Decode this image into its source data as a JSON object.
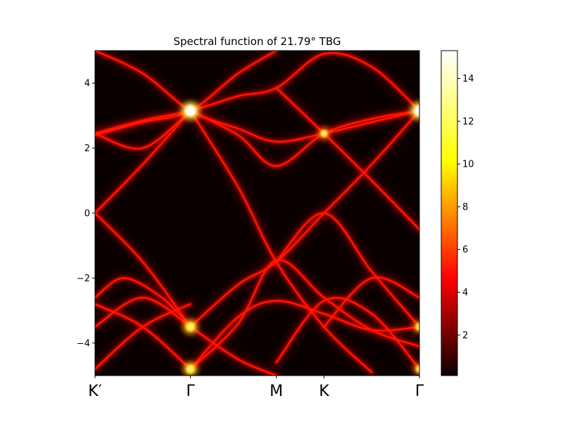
{
  "chart_data": {
    "type": "heatmap",
    "title": "Spectral function of 21.79° TBG",
    "colormap": "hot",
    "x_ticks": [
      "K′",
      "Γ",
      "M",
      "K",
      "Γ"
    ],
    "x_tick_positions": [
      0,
      1,
      1.9,
      2.4,
      3.4
    ],
    "xlim": [
      0,
      3.4
    ],
    "ylim": [
      -5,
      5
    ],
    "y_ticks": [
      -4,
      -2,
      0,
      2,
      4
    ],
    "y_tick_labels": [
      "−4",
      "−2",
      "0",
      "2",
      "4"
    ],
    "colorbar": {
      "vmin": 0.1,
      "vmax": 15.3,
      "ticks": [
        2,
        4,
        6,
        8,
        10,
        12,
        14
      ],
      "tick_labels": [
        "2",
        "4",
        "6",
        "8",
        "10",
        "12",
        "14"
      ]
    },
    "bands": [
      {
        "name": "b1",
        "points": [
          [
            0,
            5.0
          ],
          [
            0.5,
            4.3
          ],
          [
            1.0,
            3.15
          ],
          [
            1.5,
            2.6
          ],
          [
            1.9,
            2.2
          ],
          [
            2.4,
            2.45
          ],
          [
            2.9,
            2.8
          ],
          [
            3.4,
            3.15
          ]
        ]
      },
      {
        "name": "b2",
        "points": [
          [
            0,
            2.45
          ],
          [
            0.5,
            2.85
          ],
          [
            1.0,
            3.15
          ],
          [
            1.5,
            3.6
          ],
          [
            1.9,
            3.85
          ],
          [
            2.4,
            4.9
          ],
          [
            2.9,
            4.5
          ],
          [
            3.4,
            3.15
          ]
        ]
      },
      {
        "name": "b3",
        "points": [
          [
            0,
            2.4
          ],
          [
            0.5,
            2.8
          ],
          [
            1.0,
            3.15
          ],
          [
            1.5,
            4.3
          ],
          [
            1.9,
            5.0
          ]
        ]
      },
      {
        "name": "b4",
        "points": [
          [
            1.0,
            3.15
          ],
          [
            1.5,
            2.4
          ],
          [
            1.9,
            1.45
          ],
          [
            2.4,
            2.45
          ],
          [
            2.9,
            2.9
          ],
          [
            3.4,
            3.15
          ]
        ]
      },
      {
        "name": "b5",
        "points": [
          [
            0,
            2.45
          ],
          [
            0.5,
            2.0
          ],
          [
            1.0,
            3.15
          ]
        ]
      },
      {
        "name": "b6",
        "points": [
          [
            1.9,
            3.85
          ],
          [
            2.4,
            2.45
          ],
          [
            2.9,
            1.0
          ],
          [
            3.4,
            -0.5
          ]
        ]
      },
      {
        "name": "b7",
        "points": [
          [
            0,
            0
          ],
          [
            0.5,
            1.5
          ],
          [
            1.0,
            3.15
          ]
        ]
      },
      {
        "name": "b8",
        "points": [
          [
            0,
            0
          ],
          [
            0.5,
            -1.5
          ],
          [
            1.0,
            -3.5
          ]
        ]
      },
      {
        "name": "b9",
        "points": [
          [
            1.0,
            3.15
          ],
          [
            1.5,
            0.8
          ],
          [
            1.9,
            -1.5
          ],
          [
            2.4,
            -3.5
          ],
          [
            2.9,
            -4.9
          ]
        ]
      },
      {
        "name": "b10",
        "points": [
          [
            1.0,
            -3.5
          ],
          [
            1.5,
            -2.2
          ],
          [
            1.9,
            -1.5
          ],
          [
            2.4,
            0
          ],
          [
            2.9,
            1.5
          ],
          [
            3.4,
            3.15
          ]
        ]
      },
      {
        "name": "b11",
        "points": [
          [
            1.9,
            -1.5
          ],
          [
            2.4,
            0
          ],
          [
            2.9,
            -1.8
          ],
          [
            3.4,
            -3.5
          ]
        ]
      },
      {
        "name": "b12",
        "points": [
          [
            0,
            -2.6
          ],
          [
            0.3,
            -2.0
          ],
          [
            0.7,
            -2.6
          ],
          [
            1.0,
            -3.5
          ]
        ]
      },
      {
        "name": "b13",
        "points": [
          [
            0,
            -3.5
          ],
          [
            0.5,
            -2.6
          ],
          [
            1.0,
            -3.5
          ]
        ]
      },
      {
        "name": "b14",
        "points": [
          [
            0,
            -2.8
          ],
          [
            0.5,
            -3.5
          ],
          [
            1.0,
            -4.8
          ]
        ]
      },
      {
        "name": "b15",
        "points": [
          [
            0,
            -4.8
          ],
          [
            0.5,
            -3.5
          ],
          [
            1.0,
            -2.8
          ]
        ]
      },
      {
        "name": "b16",
        "points": [
          [
            1.0,
            -3.5
          ],
          [
            1.5,
            -4.5
          ],
          [
            1.9,
            -5.0
          ]
        ]
      },
      {
        "name": "b17",
        "points": [
          [
            1.0,
            -4.8
          ],
          [
            1.5,
            -3.2
          ],
          [
            1.9,
            -2.7
          ],
          [
            2.4,
            -3.1
          ],
          [
            2.9,
            -3.6
          ],
          [
            3.4,
            -3.5
          ]
        ]
      },
      {
        "name": "b18",
        "points": [
          [
            1.9,
            -4.6
          ],
          [
            2.4,
            -2.7
          ],
          [
            2.9,
            -3.1
          ],
          [
            3.4,
            -4.8
          ]
        ]
      },
      {
        "name": "b19",
        "points": [
          [
            2.4,
            -3.5
          ],
          [
            2.9,
            -2.0
          ],
          [
            3.4,
            -2.6
          ]
        ]
      },
      {
        "name": "b20",
        "points": [
          [
            1.0,
            -4.8
          ],
          [
            1.5,
            -3.4
          ],
          [
            1.9,
            -1.45
          ],
          [
            2.4,
            -2.6
          ],
          [
            2.9,
            -3.6
          ],
          [
            3.4,
            -4.1
          ]
        ]
      }
    ],
    "hotspots": [
      {
        "x": 1.0,
        "y": 3.15,
        "intensity": 15.3
      },
      {
        "x": 3.4,
        "y": 3.15,
        "intensity": 15.0
      },
      {
        "x": 1.0,
        "y": -3.5,
        "intensity": 11.0
      },
      {
        "x": 1.0,
        "y": -4.8,
        "intensity": 10.5
      },
      {
        "x": 3.4,
        "y": -3.5,
        "intensity": 9.0
      },
      {
        "x": 2.4,
        "y": 2.45,
        "intensity": 8.0
      },
      {
        "x": 3.4,
        "y": -4.8,
        "intensity": 8.0
      }
    ]
  }
}
